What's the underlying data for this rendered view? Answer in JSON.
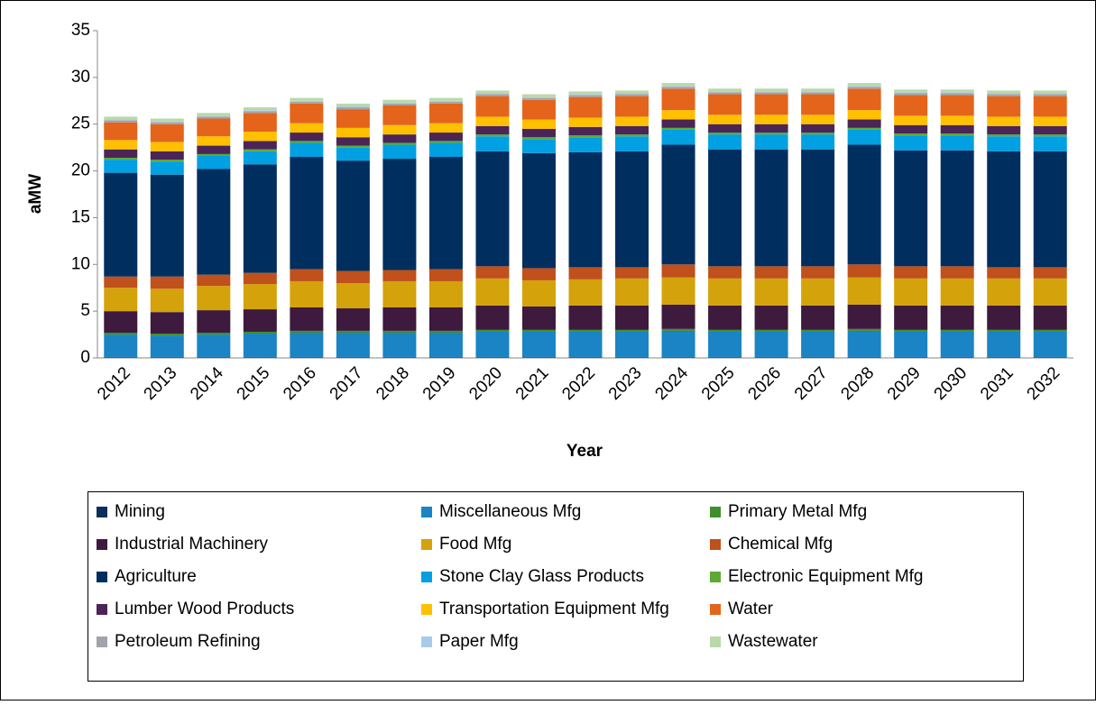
{
  "chart_data": {
    "type": "stacked_bar",
    "x_label": "Year",
    "y_label": "aMW",
    "categories": [
      "2012",
      "2013",
      "2014",
      "2015",
      "2016",
      "2017",
      "2018",
      "2019",
      "2020",
      "2021",
      "2022",
      "2023",
      "2024",
      "2025",
      "2026",
      "2027",
      "2028",
      "2029",
      "2030",
      "2031",
      "2032"
    ],
    "ylim": [
      0,
      35
    ],
    "yticks": [
      0,
      5,
      10,
      15,
      20,
      25,
      30,
      35
    ],
    "grid": false,
    "legend": "bottom",
    "series": [
      {
        "name": "Mining",
        "color": "#0b2f5a",
        "values": [
          0.1,
          0.1,
          0.1,
          0.1,
          0.1,
          0.1,
          0.1,
          0.1,
          0.1,
          0.1,
          0.1,
          0.1,
          0.1,
          0.1,
          0.1,
          0.1,
          0.1,
          0.1,
          0.1,
          0.1,
          0.1
        ]
      },
      {
        "name": "Miscellaneous Mfg",
        "color": "#1a84c4",
        "values": [
          2.4,
          2.3,
          2.4,
          2.5,
          2.6,
          2.6,
          2.6,
          2.6,
          2.7,
          2.7,
          2.7,
          2.7,
          2.8,
          2.7,
          2.7,
          2.7,
          2.8,
          2.7,
          2.7,
          2.7,
          2.7
        ]
      },
      {
        "name": "Primary Metal Mfg",
        "color": "#3f8f2a",
        "values": [
          0.2,
          0.2,
          0.2,
          0.2,
          0.2,
          0.2,
          0.2,
          0.2,
          0.2,
          0.2,
          0.2,
          0.2,
          0.2,
          0.2,
          0.2,
          0.2,
          0.2,
          0.2,
          0.2,
          0.2,
          0.2
        ]
      },
      {
        "name": "Industrial Machinery",
        "color": "#3d1a3e",
        "values": [
          2.3,
          2.3,
          2.4,
          2.4,
          2.5,
          2.4,
          2.5,
          2.5,
          2.6,
          2.5,
          2.6,
          2.6,
          2.6,
          2.6,
          2.6,
          2.6,
          2.6,
          2.6,
          2.6,
          2.6,
          2.6
        ]
      },
      {
        "name": "Food Mfg",
        "color": "#d4a20a",
        "values": [
          2.5,
          2.5,
          2.6,
          2.7,
          2.8,
          2.7,
          2.8,
          2.8,
          2.9,
          2.8,
          2.8,
          2.9,
          2.9,
          2.9,
          2.9,
          2.9,
          2.9,
          2.9,
          2.9,
          2.9,
          2.9
        ]
      },
      {
        "name": "Chemical Mfg",
        "color": "#c0501c",
        "values": [
          1.2,
          1.3,
          1.2,
          1.2,
          1.3,
          1.3,
          1.2,
          1.3,
          1.3,
          1.3,
          1.3,
          1.2,
          1.4,
          1.3,
          1.3,
          1.3,
          1.4,
          1.3,
          1.3,
          1.2,
          1.2
        ]
      },
      {
        "name": "Agriculture",
        "color": "#002f5f",
        "values": [
          11.1,
          10.9,
          11.3,
          11.6,
          12.0,
          11.8,
          11.9,
          12.0,
          12.3,
          12.3,
          12.3,
          12.4,
          12.8,
          12.5,
          12.5,
          12.5,
          12.8,
          12.4,
          12.4,
          12.4,
          12.4
        ]
      },
      {
        "name": "Stone Clay Glass Products",
        "color": "#00a0e2",
        "values": [
          1.4,
          1.4,
          1.4,
          1.4,
          1.5,
          1.4,
          1.5,
          1.5,
          1.6,
          1.5,
          1.6,
          1.6,
          1.6,
          1.6,
          1.6,
          1.6,
          1.6,
          1.6,
          1.6,
          1.6,
          1.6
        ]
      },
      {
        "name": "Electronic Equipment Mfg",
        "color": "#5aab32",
        "values": [
          0.2,
          0.2,
          0.2,
          0.2,
          0.2,
          0.2,
          0.2,
          0.2,
          0.2,
          0.2,
          0.2,
          0.2,
          0.2,
          0.2,
          0.2,
          0.2,
          0.2,
          0.2,
          0.2,
          0.2,
          0.2
        ]
      },
      {
        "name": "Lumber Wood Products",
        "color": "#4b2557",
        "values": [
          0.9,
          0.9,
          0.9,
          0.9,
          0.9,
          0.9,
          0.9,
          0.9,
          0.9,
          0.9,
          0.9,
          0.9,
          0.9,
          0.9,
          0.9,
          0.9,
          0.9,
          0.9,
          0.9,
          0.9,
          0.9
        ]
      },
      {
        "name": "Transportation Equipment Mfg",
        "color": "#ffc000",
        "values": [
          1.0,
          1.0,
          1.0,
          1.0,
          1.0,
          1.0,
          1.0,
          1.0,
          1.0,
          1.0,
          1.0,
          1.0,
          1.0,
          1.0,
          1.0,
          1.0,
          1.0,
          1.0,
          1.0,
          1.0,
          1.0
        ]
      },
      {
        "name": "Water",
        "color": "#e4641c",
        "values": [
          1.9,
          1.9,
          1.9,
          2.0,
          2.1,
          2.0,
          2.1,
          2.1,
          2.2,
          2.1,
          2.2,
          2.2,
          2.3,
          2.2,
          2.2,
          2.2,
          2.3,
          2.2,
          2.2,
          2.2,
          2.2
        ]
      },
      {
        "name": "Petroleum Refining",
        "color": "#a2a4ac",
        "values": [
          0.2,
          0.2,
          0.2,
          0.2,
          0.2,
          0.2,
          0.2,
          0.2,
          0.2,
          0.2,
          0.2,
          0.2,
          0.2,
          0.2,
          0.2,
          0.2,
          0.2,
          0.2,
          0.2,
          0.2,
          0.2
        ]
      },
      {
        "name": "Paper Mfg",
        "color": "#a9cbea",
        "values": [
          0.1,
          0.1,
          0.1,
          0.1,
          0.1,
          0.1,
          0.1,
          0.1,
          0.1,
          0.1,
          0.1,
          0.1,
          0.1,
          0.1,
          0.1,
          0.1,
          0.1,
          0.1,
          0.1,
          0.1,
          0.1
        ]
      },
      {
        "name": "Wastewater",
        "color": "#b9d9a8",
        "values": [
          0.3,
          0.3,
          0.3,
          0.3,
          0.3,
          0.3,
          0.3,
          0.3,
          0.3,
          0.3,
          0.3,
          0.3,
          0.3,
          0.3,
          0.3,
          0.3,
          0.3,
          0.3,
          0.3,
          0.3,
          0.3
        ]
      }
    ]
  }
}
